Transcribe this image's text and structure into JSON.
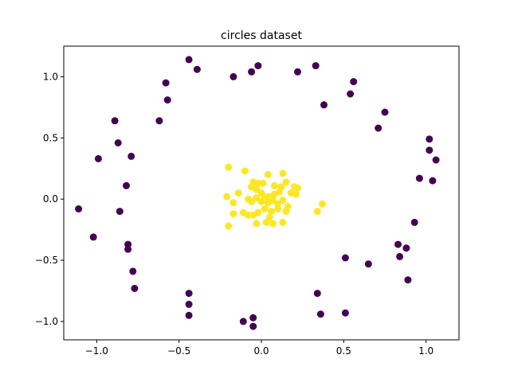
{
  "chart_data": {
    "type": "scatter",
    "title": "circles dataset",
    "xlabel": "",
    "ylabel": "",
    "xlim": [
      -1.2,
      1.2
    ],
    "ylim": [
      -1.15,
      1.25
    ],
    "xticks": [
      -1.0,
      -0.5,
      0.0,
      0.5,
      1.0
    ],
    "xtick_labels": [
      "−1.0",
      "−0.5",
      "0.0",
      "0.5",
      "1.0"
    ],
    "yticks": [
      -1.0,
      -0.5,
      0.0,
      0.5,
      1.0
    ],
    "ytick_labels": [
      "−1.0",
      "−0.5",
      "0.0",
      "0.5",
      "1.0"
    ],
    "grid": false,
    "series": [
      {
        "color": "#440154",
        "points": [
          [
            -0.44,
            1.14
          ],
          [
            -0.39,
            1.06
          ],
          [
            -0.17,
            1.0
          ],
          [
            -0.06,
            1.04
          ],
          [
            -0.02,
            1.09
          ],
          [
            0.22,
            1.04
          ],
          [
            0.33,
            1.09
          ],
          [
            0.38,
            0.77
          ],
          [
            0.54,
            0.86
          ],
          [
            0.56,
            0.96
          ],
          [
            0.71,
            0.58
          ],
          [
            0.75,
            0.71
          ],
          [
            1.02,
            0.49
          ],
          [
            1.02,
            0.4
          ],
          [
            1.06,
            0.32
          ],
          [
            0.96,
            0.17
          ],
          [
            1.04,
            0.15
          ],
          [
            0.93,
            -0.19
          ],
          [
            0.83,
            -0.37
          ],
          [
            0.84,
            -0.47
          ],
          [
            0.88,
            -0.4
          ],
          [
            0.89,
            -0.66
          ],
          [
            0.65,
            -0.53
          ],
          [
            0.51,
            -0.48
          ],
          [
            0.34,
            -0.77
          ],
          [
            0.36,
            -0.94
          ],
          [
            0.51,
            -0.93
          ],
          [
            -0.05,
            -0.97
          ],
          [
            -0.11,
            -1.0
          ],
          [
            -0.05,
            -1.04
          ],
          [
            -0.44,
            -0.77
          ],
          [
            -0.44,
            -0.86
          ],
          [
            -0.44,
            -0.95
          ],
          [
            -0.78,
            -0.59
          ],
          [
            -0.77,
            -0.73
          ],
          [
            -0.81,
            -0.37
          ],
          [
            -0.81,
            -0.41
          ],
          [
            -1.02,
            -0.31
          ],
          [
            -1.11,
            -0.08
          ],
          [
            -0.86,
            -0.1
          ],
          [
            -0.82,
            0.11
          ],
          [
            -0.99,
            0.33
          ],
          [
            -0.79,
            0.35
          ],
          [
            -0.87,
            0.46
          ],
          [
            -0.89,
            0.64
          ],
          [
            -0.62,
            0.64
          ],
          [
            -0.57,
            0.81
          ],
          [
            -0.58,
            0.95
          ]
        ]
      },
      {
        "color": "#fde725",
        "points": [
          [
            -0.2,
            0.26
          ],
          [
            -0.1,
            0.23
          ],
          [
            -0.05,
            0.14
          ],
          [
            -0.02,
            0.13
          ],
          [
            0.01,
            0.13
          ],
          [
            0.04,
            0.2
          ],
          [
            0.08,
            0.11
          ],
          [
            0.12,
            0.1
          ],
          [
            0.13,
            0.21
          ],
          [
            0.15,
            0.14
          ],
          [
            0.2,
            0.1
          ],
          [
            0.22,
            0.09
          ],
          [
            -0.14,
            0.05
          ],
          [
            -0.06,
            0.1
          ],
          [
            -0.03,
            0.08
          ],
          [
            0.0,
            0.05
          ],
          [
            0.02,
            0.02
          ],
          [
            0.05,
            0.02
          ],
          [
            0.08,
            0.04
          ],
          [
            0.11,
            0.06
          ],
          [
            0.18,
            0.05
          ],
          [
            0.21,
            0.04
          ],
          [
            -0.21,
            0.02
          ],
          [
            -0.17,
            -0.03
          ],
          [
            -0.08,
            0.0
          ],
          [
            -0.06,
            -0.02
          ],
          [
            -0.03,
            0.01
          ],
          [
            0.0,
            -0.02
          ],
          [
            0.04,
            -0.03
          ],
          [
            0.07,
            -0.01
          ],
          [
            0.1,
            -0.04
          ],
          [
            0.13,
            -0.01
          ],
          [
            0.16,
            -0.06
          ],
          [
            0.37,
            -0.04
          ],
          [
            0.34,
            -0.1
          ],
          [
            -0.17,
            -0.12
          ],
          [
            -0.11,
            -0.11
          ],
          [
            -0.08,
            -0.13
          ],
          [
            -0.05,
            -0.13
          ],
          [
            -0.02,
            -0.11
          ],
          [
            0.02,
            -0.08
          ],
          [
            0.06,
            -0.1
          ],
          [
            0.1,
            -0.08
          ],
          [
            0.15,
            -0.1
          ],
          [
            0.13,
            -0.19
          ],
          [
            0.03,
            -0.19
          ],
          [
            0.07,
            -0.2
          ],
          [
            -0.03,
            -0.2
          ],
          [
            0.05,
            -0.15
          ],
          [
            -0.2,
            -0.22
          ]
        ]
      }
    ]
  }
}
